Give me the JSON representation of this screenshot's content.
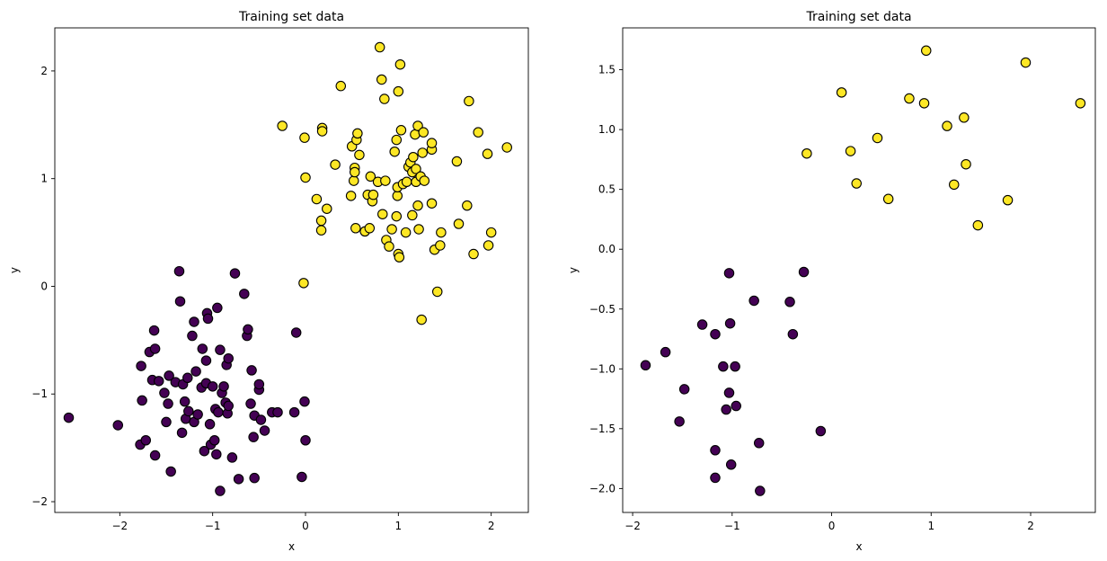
{
  "chart_data": [
    {
      "type": "scatter",
      "title": "Training set data",
      "xlabel": "x",
      "ylabel": "y",
      "xlim": [
        -2.7,
        2.4
      ],
      "ylim": [
        -2.1,
        2.4
      ],
      "xticks": [
        -2,
        -1,
        0,
        1,
        2
      ],
      "yticks": [
        -2,
        -1,
        0,
        1,
        2
      ],
      "xtick_labels": [
        "−2",
        "−1",
        "0",
        "1",
        "2"
      ],
      "ytick_labels": [
        "−2",
        "−1",
        "0",
        "1",
        "2"
      ],
      "grid": false,
      "series": [
        {
          "color": "#440154",
          "points": [
            [
              -2.55,
              -1.22
            ],
            [
              -2.02,
              -1.29
            ],
            [
              -1.78,
              -1.47
            ],
            [
              -1.77,
              -0.74
            ],
            [
              -1.76,
              -1.06
            ],
            [
              -1.72,
              -1.43
            ],
            [
              -1.68,
              -0.61
            ],
            [
              -1.65,
              -0.87
            ],
            [
              -1.63,
              -0.41
            ],
            [
              -1.62,
              -0.58
            ],
            [
              -1.62,
              -1.57
            ],
            [
              -1.58,
              -0.88
            ],
            [
              -1.52,
              -0.99
            ],
            [
              -1.5,
              -1.26
            ],
            [
              -1.48,
              -1.09
            ],
            [
              -1.47,
              -0.83
            ],
            [
              -1.45,
              -1.72
            ],
            [
              -1.4,
              -0.89
            ],
            [
              -1.36,
              0.14
            ],
            [
              -1.35,
              -0.14
            ],
            [
              -1.33,
              -1.36
            ],
            [
              -1.32,
              -0.91
            ],
            [
              -1.3,
              -1.07
            ],
            [
              -1.29,
              -1.23
            ],
            [
              -1.27,
              -0.85
            ],
            [
              -1.26,
              -1.16
            ],
            [
              -1.22,
              -0.46
            ],
            [
              -1.2,
              -0.33
            ],
            [
              -1.2,
              -1.26
            ],
            [
              -1.18,
              -0.79
            ],
            [
              -1.16,
              -1.19
            ],
            [
              -1.12,
              -0.94
            ],
            [
              -1.11,
              -0.58
            ],
            [
              -1.09,
              -1.53
            ],
            [
              -1.07,
              -0.69
            ],
            [
              -1.07,
              -0.9
            ],
            [
              -1.06,
              -0.25
            ],
            [
              -1.05,
              -0.3
            ],
            [
              -1.03,
              -1.28
            ],
            [
              -1.02,
              -1.47
            ],
            [
              -1.0,
              -0.93
            ],
            [
              -0.98,
              -1.43
            ],
            [
              -0.97,
              -1.14
            ],
            [
              -0.96,
              -1.56
            ],
            [
              -0.95,
              -0.2
            ],
            [
              -0.94,
              -1.17
            ],
            [
              -0.92,
              -1.9
            ],
            [
              -0.92,
              -0.59
            ],
            [
              -0.9,
              -0.99
            ],
            [
              -0.88,
              -0.93
            ],
            [
              -0.86,
              -1.08
            ],
            [
              -0.85,
              -0.73
            ],
            [
              -0.84,
              -1.18
            ],
            [
              -0.83,
              -1.11
            ],
            [
              -0.83,
              -0.67
            ],
            [
              -0.79,
              -1.59
            ],
            [
              -0.76,
              0.12
            ],
            [
              -0.72,
              -1.79
            ],
            [
              -0.66,
              -0.07
            ],
            [
              -0.63,
              -0.46
            ],
            [
              -0.62,
              -0.4
            ],
            [
              -0.59,
              -1.09
            ],
            [
              -0.58,
              -0.78
            ],
            [
              -0.56,
              -1.4
            ],
            [
              -0.55,
              -1.2
            ],
            [
              -0.55,
              -1.78
            ],
            [
              -0.5,
              -0.96
            ],
            [
              -0.5,
              -0.91
            ],
            [
              -0.48,
              -1.24
            ],
            [
              -0.44,
              -1.34
            ],
            [
              -0.36,
              -1.17
            ],
            [
              -0.3,
              -1.17
            ],
            [
              -0.12,
              -1.17
            ],
            [
              -0.1,
              -0.43
            ],
            [
              -0.04,
              -1.77
            ],
            [
              -0.01,
              -1.07
            ],
            [
              0.0,
              -1.43
            ]
          ]
        },
        {
          "color": "#fde725",
          "points": [
            [
              -0.02,
              0.03
            ],
            [
              -0.25,
              1.49
            ],
            [
              -0.01,
              1.38
            ],
            [
              0.0,
              1.01
            ],
            [
              0.12,
              0.81
            ],
            [
              0.17,
              0.52
            ],
            [
              0.17,
              0.61
            ],
            [
              0.18,
              1.47
            ],
            [
              0.18,
              1.44
            ],
            [
              0.23,
              0.72
            ],
            [
              0.32,
              1.13
            ],
            [
              0.38,
              1.86
            ],
            [
              0.49,
              0.84
            ],
            [
              0.5,
              1.3
            ],
            [
              0.52,
              0.98
            ],
            [
              0.53,
              1.1
            ],
            [
              0.53,
              1.06
            ],
            [
              0.54,
              0.54
            ],
            [
              0.55,
              1.36
            ],
            [
              0.56,
              1.42
            ],
            [
              0.58,
              1.22
            ],
            [
              0.64,
              0.51
            ],
            [
              0.67,
              0.85
            ],
            [
              0.69,
              0.54
            ],
            [
              0.7,
              1.02
            ],
            [
              0.72,
              0.79
            ],
            [
              0.73,
              0.85
            ],
            [
              0.78,
              0.97
            ],
            [
              0.8,
              2.22
            ],
            [
              0.82,
              1.92
            ],
            [
              0.83,
              0.67
            ],
            [
              0.85,
              1.74
            ],
            [
              0.86,
              0.98
            ],
            [
              0.87,
              0.43
            ],
            [
              0.9,
              0.37
            ],
            [
              0.93,
              0.53
            ],
            [
              0.96,
              1.25
            ],
            [
              0.98,
              1.36
            ],
            [
              0.98,
              0.65
            ],
            [
              0.99,
              0.84
            ],
            [
              0.99,
              0.92
            ],
            [
              1.0,
              0.3
            ],
            [
              1.0,
              1.81
            ],
            [
              1.01,
              0.27
            ],
            [
              1.02,
              2.06
            ],
            [
              1.03,
              1.45
            ],
            [
              1.05,
              0.95
            ],
            [
              1.08,
              0.5
            ],
            [
              1.09,
              0.97
            ],
            [
              1.11,
              1.11
            ],
            [
              1.13,
              1.15
            ],
            [
              1.15,
              0.66
            ],
            [
              1.15,
              1.06
            ],
            [
              1.16,
              1.2
            ],
            [
              1.18,
              1.41
            ],
            [
              1.19,
              0.97
            ],
            [
              1.19,
              1.09
            ],
            [
              1.21,
              0.75
            ],
            [
              1.21,
              1.49
            ],
            [
              1.22,
              0.53
            ],
            [
              1.24,
              1.02
            ],
            [
              1.25,
              -0.31
            ],
            [
              1.26,
              1.24
            ],
            [
              1.27,
              1.43
            ],
            [
              1.28,
              0.98
            ],
            [
              1.36,
              0.77
            ],
            [
              1.36,
              1.27
            ],
            [
              1.36,
              1.33
            ],
            [
              1.39,
              0.34
            ],
            [
              1.42,
              -0.05
            ],
            [
              1.45,
              0.38
            ],
            [
              1.46,
              0.5
            ],
            [
              1.63,
              1.16
            ],
            [
              1.65,
              0.58
            ],
            [
              1.74,
              0.75
            ],
            [
              1.76,
              1.72
            ],
            [
              1.81,
              0.3
            ],
            [
              1.86,
              1.43
            ],
            [
              1.96,
              1.23
            ],
            [
              1.97,
              0.38
            ],
            [
              2.0,
              0.5
            ],
            [
              2.17,
              1.29
            ]
          ]
        }
      ]
    },
    {
      "type": "scatter",
      "title": "Training set data",
      "xlabel": "x",
      "ylabel": "y",
      "xlim": [
        -2.1,
        2.65
      ],
      "ylim": [
        -2.2,
        1.85
      ],
      "xticks": [
        -2,
        -1,
        0,
        1,
        2
      ],
      "yticks": [
        -2.0,
        -1.5,
        -1.0,
        -0.5,
        0.0,
        0.5,
        1.0,
        1.5
      ],
      "xtick_labels": [
        "−2",
        "−1",
        "0",
        "1",
        "2"
      ],
      "ytick_labels": [
        "−2.0",
        "−1.5",
        "−1.0",
        "−0.5",
        "0.0",
        "0.5",
        "1.0",
        "1.5"
      ],
      "grid": false,
      "series": [
        {
          "color": "#440154",
          "points": [
            [
              -1.87,
              -0.97
            ],
            [
              -1.67,
              -0.86
            ],
            [
              -1.48,
              -1.17
            ],
            [
              -1.53,
              -1.44
            ],
            [
              -1.3,
              -0.63
            ],
            [
              -1.17,
              -0.71
            ],
            [
              -1.17,
              -1.68
            ],
            [
              -1.17,
              -1.91
            ],
            [
              -1.09,
              -0.98
            ],
            [
              -1.06,
              -1.34
            ],
            [
              -1.03,
              -0.2
            ],
            [
              -1.03,
              -1.2
            ],
            [
              -1.02,
              -0.62
            ],
            [
              -1.01,
              -1.8
            ],
            [
              -0.97,
              -0.98
            ],
            [
              -0.96,
              -1.31
            ],
            [
              -0.78,
              -0.43
            ],
            [
              -0.73,
              -1.62
            ],
            [
              -0.72,
              -2.02
            ],
            [
              -0.42,
              -0.44
            ],
            [
              -0.39,
              -0.71
            ],
            [
              -0.28,
              -0.19
            ],
            [
              -0.11,
              -1.52
            ]
          ]
        },
        {
          "color": "#fde725",
          "points": [
            [
              -0.25,
              0.8
            ],
            [
              0.1,
              1.31
            ],
            [
              0.19,
              0.82
            ],
            [
              0.25,
              0.55
            ],
            [
              0.46,
              0.93
            ],
            [
              0.57,
              0.42
            ],
            [
              0.78,
              1.26
            ],
            [
              0.93,
              1.22
            ],
            [
              0.95,
              1.66
            ],
            [
              1.16,
              1.03
            ],
            [
              1.23,
              0.54
            ],
            [
              1.33,
              1.1
            ],
            [
              1.35,
              0.71
            ],
            [
              1.47,
              0.2
            ],
            [
              1.77,
              0.41
            ],
            [
              1.95,
              1.56
            ],
            [
              2.5,
              1.22
            ]
          ]
        }
      ]
    }
  ]
}
